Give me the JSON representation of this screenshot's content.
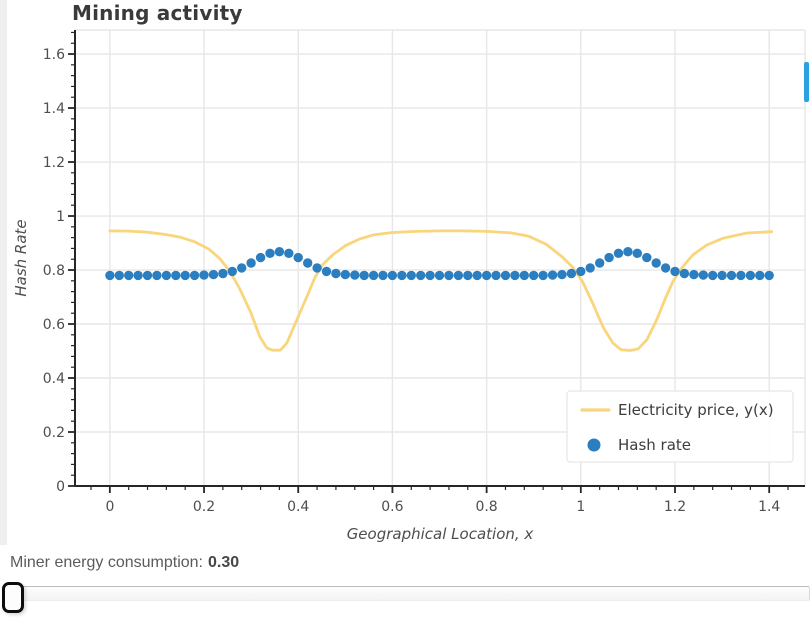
{
  "chart_data": {
    "type": "line",
    "title": "Mining activity",
    "xlabel": "Geographical Location, x",
    "ylabel": "Hash Rate",
    "xlim": [
      -0.074,
      1.476
    ],
    "ylim": [
      0,
      1.689
    ],
    "grid": true,
    "legend_position": "lower right",
    "x_ticks": [
      0,
      0.2,
      0.4,
      0.6,
      0.8,
      1,
      1.2,
      1.4
    ],
    "x_tick_labels": [
      "0",
      "0.2",
      "0.4",
      "0.6",
      "0.8",
      "1",
      "1.2",
      "1.4"
    ],
    "y_ticks": [
      0,
      0.2,
      0.4,
      0.6,
      0.8,
      1,
      1.2,
      1.4,
      1.6
    ],
    "y_tick_labels": [
      "0",
      "0.2",
      "0.4",
      "0.6",
      "0.8",
      "1",
      "1.2",
      "1.4",
      "1.6"
    ],
    "series": [
      {
        "name": "Electricity price, y(x)",
        "type": "line",
        "color": "#f9d57c",
        "x": [
          0,
          0.04,
          0.08,
          0.12,
          0.15,
          0.18,
          0.21,
          0.233,
          0.255,
          0.276,
          0.3,
          0.318,
          0.333,
          0.345,
          0.362,
          0.376,
          0.397,
          0.418,
          0.435,
          0.452,
          0.473,
          0.5,
          0.53,
          0.56,
          0.6,
          0.65,
          0.7,
          0.75,
          0.8,
          0.85,
          0.89,
          0.927,
          0.961,
          0.983,
          1.004,
          1.025,
          1.047,
          1.068,
          1.085,
          1.105,
          1.122,
          1.14,
          1.161,
          1.178,
          1.195,
          1.214,
          1.238,
          1.268,
          1.302,
          1.353,
          1.405
        ],
        "y": [
          0.945,
          0.944,
          0.94,
          0.931,
          0.921,
          0.905,
          0.878,
          0.843,
          0.795,
          0.73,
          0.64,
          0.555,
          0.512,
          0.503,
          0.503,
          0.53,
          0.615,
          0.7,
          0.77,
          0.82,
          0.856,
          0.89,
          0.915,
          0.93,
          0.939,
          0.943,
          0.945,
          0.945,
          0.943,
          0.938,
          0.925,
          0.895,
          0.848,
          0.81,
          0.756,
          0.678,
          0.589,
          0.53,
          0.505,
          0.502,
          0.508,
          0.541,
          0.615,
          0.689,
          0.756,
          0.807,
          0.856,
          0.893,
          0.918,
          0.937,
          0.942
        ]
      },
      {
        "name": "Hash rate",
        "type": "scatter",
        "color": "#2b7ec0",
        "x": [
          0,
          0.02,
          0.04,
          0.06,
          0.08,
          0.1,
          0.12,
          0.14,
          0.16,
          0.18,
          0.2,
          0.22,
          0.24,
          0.26,
          0.28,
          0.3,
          0.32,
          0.34,
          0.36,
          0.38,
          0.4,
          0.42,
          0.44,
          0.46,
          0.48,
          0.5,
          0.52,
          0.54,
          0.56,
          0.58,
          0.6,
          0.62,
          0.64,
          0.66,
          0.68,
          0.7,
          0.72,
          0.74,
          0.76,
          0.78,
          0.8,
          0.82,
          0.84,
          0.86,
          0.88,
          0.9,
          0.92,
          0.94,
          0.96,
          0.98,
          1,
          1.02,
          1.04,
          1.06,
          1.08,
          1.1,
          1.12,
          1.14,
          1.16,
          1.18,
          1.2,
          1.22,
          1.24,
          1.26,
          1.28,
          1.3,
          1.32,
          1.34,
          1.36,
          1.38,
          1.4
        ],
        "y": [
          0.78,
          0.78,
          0.78,
          0.78,
          0.78,
          0.78,
          0.78,
          0.78,
          0.78,
          0.78,
          0.781,
          0.783,
          0.787,
          0.795,
          0.808,
          0.826,
          0.846,
          0.862,
          0.868,
          0.862,
          0.846,
          0.826,
          0.808,
          0.795,
          0.787,
          0.783,
          0.781,
          0.78,
          0.78,
          0.78,
          0.78,
          0.78,
          0.78,
          0.78,
          0.78,
          0.78,
          0.78,
          0.78,
          0.78,
          0.78,
          0.78,
          0.78,
          0.78,
          0.78,
          0.78,
          0.78,
          0.78,
          0.781,
          0.783,
          0.787,
          0.795,
          0.808,
          0.826,
          0.846,
          0.862,
          0.868,
          0.862,
          0.846,
          0.826,
          0.808,
          0.795,
          0.787,
          0.783,
          0.781,
          0.78,
          0.78,
          0.78,
          0.78,
          0.78,
          0.78,
          0.78
        ]
      }
    ]
  },
  "widget": {
    "label": "Miner energy consumption:",
    "value": "0.30"
  },
  "scrollbar": {
    "color": "#2aa1e1"
  },
  "colors": {
    "grid": "#e7e7e7",
    "spine": "#262626",
    "tick_text": "#4e4e4e",
    "legend_text": "#3d3d3d",
    "title_text": "#3a3a3a"
  }
}
